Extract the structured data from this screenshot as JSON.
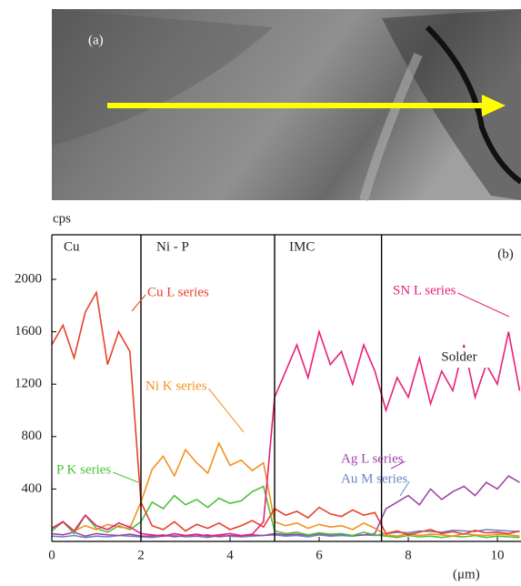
{
  "image_label": "(a)",
  "chart_data": {
    "type": "line",
    "y_label": "cps",
    "x_label": "(μm)",
    "x": [
      0,
      0.25,
      0.5,
      0.75,
      1,
      1.25,
      1.5,
      1.75,
      2,
      2.25,
      2.5,
      2.75,
      3,
      3.25,
      3.5,
      3.75,
      4,
      4.25,
      4.5,
      4.75,
      5,
      5.25,
      5.5,
      5.75,
      6,
      6.25,
      6.5,
      6.75,
      7,
      7.25,
      7.5,
      7.75,
      8,
      8.25,
      8.5,
      8.75,
      9,
      9.25,
      9.5,
      9.75,
      10,
      10.25,
      10.5
    ],
    "series": [
      {
        "name": "Au M series",
        "color": "#6b84c4",
        "values": [
          40,
          35,
          45,
          30,
          40,
          35,
          45,
          40,
          35,
          30,
          40,
          45,
          35,
          40,
          30,
          45,
          40,
          35,
          40,
          45,
          50,
          40,
          45,
          35,
          50,
          40,
          45,
          40,
          50,
          45,
          60,
          70,
          65,
          80,
          75,
          70,
          85,
          80,
          75,
          90,
          85,
          80,
          75
        ]
      },
      {
        "name": "Ag L series",
        "color": "#a045a8",
        "values": [
          60,
          50,
          70,
          40,
          60,
          50,
          45,
          55,
          40,
          40,
          50,
          35,
          45,
          40,
          50,
          35,
          45,
          40,
          50,
          45,
          60,
          50,
          55,
          45,
          60,
          50,
          55,
          45,
          50,
          60,
          250,
          300,
          350,
          280,
          400,
          320,
          380,
          420,
          350,
          450,
          400,
          500,
          450
        ]
      },
      {
        "name": "P K series",
        "color": "#4cc23a",
        "values": [
          80,
          150,
          60,
          200,
          100,
          70,
          120,
          90,
          150,
          300,
          250,
          350,
          280,
          320,
          260,
          330,
          290,
          310,
          380,
          420,
          80,
          60,
          70,
          50,
          65,
          55,
          60,
          45,
          70,
          50,
          40,
          30,
          45,
          35,
          40,
          30,
          40,
          35,
          45,
          30,
          40,
          35,
          30
        ]
      },
      {
        "name": "Ni K series",
        "color": "#f5901e",
        "values": [
          100,
          150,
          80,
          120,
          90,
          130,
          110,
          100,
          300,
          550,
          650,
          500,
          700,
          600,
          520,
          750,
          580,
          620,
          540,
          600,
          150,
          120,
          140,
          100,
          130,
          110,
          120,
          90,
          140,
          100,
          50,
          40,
          60,
          45,
          55,
          50,
          40,
          60,
          50,
          45,
          55,
          50,
          40
        ]
      },
      {
        "name": "Cu L series",
        "color": "#e8412a",
        "values": [
          1500,
          1650,
          1400,
          1750,
          1900,
          1350,
          1600,
          1450,
          300,
          120,
          90,
          150,
          80,
          130,
          100,
          140,
          90,
          120,
          160,
          110,
          250,
          200,
          230,
          180,
          260,
          210,
          190,
          240,
          200,
          220,
          60,
          80,
          50,
          70,
          90,
          60,
          75,
          55,
          85,
          65,
          70,
          60,
          80
        ]
      },
      {
        "name": "SN L series",
        "color": "#e8207a",
        "values": [
          100,
          150,
          80,
          200,
          120,
          90,
          140,
          110,
          60,
          50,
          40,
          60,
          45,
          55,
          40,
          50,
          60,
          45,
          55,
          150,
          1100,
          1300,
          1500,
          1250,
          1600,
          1350,
          1450,
          1200,
          1500,
          1300,
          1000,
          1250,
          1100,
          1400,
          1050,
          1300,
          1150,
          1500,
          1100,
          1350,
          1200,
          1600,
          1150
        ]
      }
    ],
    "regions": [
      "Cu",
      "Ni - P",
      "IMC",
      "Solder"
    ],
    "boundaries": [
      2,
      5,
      7.4
    ],
    "panel_label": "(b)",
    "xlim": [
      0,
      10.53
    ],
    "ylim": [
      0,
      2340
    ],
    "xticks": [
      0,
      2,
      4,
      6,
      8,
      10
    ],
    "yticks": [
      400,
      800,
      1200,
      1600,
      2000
    ]
  }
}
